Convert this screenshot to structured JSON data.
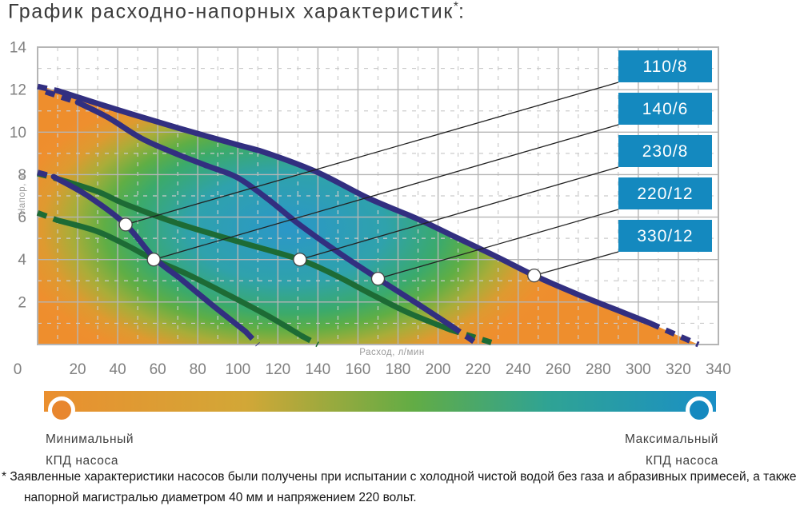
{
  "title": {
    "main": "График расходно-напорных характеристик",
    "asterisk": "*",
    "colon": ":"
  },
  "chart_data": {
    "type": "line",
    "xlabel": "Расход, л/мин",
    "ylabel": "Напор, м",
    "xlim": [
      0,
      340
    ],
    "ylim": [
      0,
      14
    ],
    "x_ticks": [
      0,
      20,
      40,
      60,
      80,
      100,
      120,
      140,
      160,
      180,
      200,
      220,
      240,
      260,
      280,
      300,
      320,
      340
    ],
    "y_ticks": [
      2,
      4,
      6,
      8,
      10,
      12,
      14
    ],
    "grid": {
      "major": "solid",
      "minor": "dashed"
    },
    "series": [
      {
        "label": "110/8",
        "color": "#322F80",
        "head_dash": [
          [
            0,
            8.1
          ],
          [
            8,
            7.9
          ]
        ],
        "points": [
          [
            8,
            7.9
          ],
          [
            25,
            7.0
          ],
          [
            44,
            5.65
          ],
          [
            58,
            4.1
          ],
          [
            72,
            3.05
          ],
          [
            86,
            1.95
          ],
          [
            104,
            0.6
          ]
        ],
        "tail_dash": [
          [
            104,
            0.6
          ],
          [
            110,
            0
          ]
        ],
        "marker": [
          44,
          5.65
        ]
      },
      {
        "label": "140/6",
        "color": "#1D6B35",
        "head_dash": [
          [
            0,
            6.2
          ],
          [
            10,
            5.85
          ]
        ],
        "points": [
          [
            10,
            5.85
          ],
          [
            29,
            5.35
          ],
          [
            44,
            4.7
          ],
          [
            58,
            4.0
          ],
          [
            75,
            3.3
          ],
          [
            96,
            2.3
          ],
          [
            115,
            1.35
          ],
          [
            132,
            0.4
          ]
        ],
        "tail_dash": [
          [
            132,
            0.4
          ],
          [
            140,
            0
          ]
        ],
        "marker": [
          58,
          4.0
        ]
      },
      {
        "label": "230/8",
        "color": "#1D6B35",
        "head_dash": [
          [
            0,
            8.05
          ],
          [
            10,
            7.8
          ]
        ],
        "points": [
          [
            10,
            7.8
          ],
          [
            30,
            7.2
          ],
          [
            44,
            6.6
          ],
          [
            70,
            5.7
          ],
          [
            100,
            4.85
          ],
          [
            131,
            4.0
          ],
          [
            150,
            3.2
          ],
          [
            166,
            2.4
          ],
          [
            185,
            1.5
          ],
          [
            206,
            0.7
          ]
        ],
        "tail_dash": [
          [
            206,
            0.7
          ],
          [
            218,
            0.35
          ],
          [
            230,
            0
          ]
        ],
        "marker": [
          131,
          4.0
        ]
      },
      {
        "label": "220/12",
        "color": "#322F80",
        "head_dash": [
          [
            4,
            11.9
          ],
          [
            20,
            11.4
          ]
        ],
        "points": [
          [
            20,
            11.4
          ],
          [
            35,
            10.7
          ],
          [
            52,
            9.7
          ],
          [
            70,
            8.95
          ],
          [
            85,
            8.4
          ],
          [
            100,
            7.85
          ],
          [
            115,
            6.85
          ],
          [
            130,
            5.7
          ],
          [
            150,
            4.35
          ],
          [
            170,
            3.1
          ],
          [
            190,
            1.9
          ],
          [
            207,
            0.85
          ]
        ],
        "tail_dash": [
          [
            207,
            0.85
          ],
          [
            220,
            0
          ]
        ],
        "marker": [
          170,
          3.1
        ]
      },
      {
        "label": "330/12",
        "color": "#322F80",
        "head_dash": [
          [
            0,
            12.15
          ],
          [
            10,
            11.95
          ]
        ],
        "points": [
          [
            10,
            11.95
          ],
          [
            40,
            11.05
          ],
          [
            70,
            10.2
          ],
          [
            100,
            9.4
          ],
          [
            115,
            9.0
          ],
          [
            140,
            8.1
          ],
          [
            165,
            6.9
          ],
          [
            190,
            5.9
          ],
          [
            210,
            5.0
          ],
          [
            230,
            4.1
          ],
          [
            248,
            3.25
          ],
          [
            270,
            2.35
          ],
          [
            290,
            1.6
          ],
          [
            306,
            1.0
          ]
        ],
        "tail_dash": [
          [
            306,
            1.0
          ],
          [
            318,
            0.5
          ],
          [
            330,
            0
          ]
        ],
        "marker": [
          248,
          3.25
        ]
      }
    ],
    "callout_boxes": {
      "fill": "#1489BF",
      "text_color": "#FFFFFF"
    },
    "efficiency_gradient_stops": [
      [
        0,
        "#2B97C8"
      ],
      [
        0.33,
        "#2FA2AC"
      ],
      [
        0.52,
        "#3BAA6B"
      ],
      [
        0.62,
        "#5FAE45"
      ],
      [
        0.73,
        "#A9AD39"
      ],
      [
        0.83,
        "#DE9A30"
      ],
      [
        0.93,
        "#EE8F2E"
      ],
      [
        1,
        "#EE8E2D"
      ]
    ]
  },
  "colorbar": {
    "gradient": [
      "#EA8F2F 0%",
      "#D2A737 30%",
      "#62AC45 55%",
      "#2FA394 75%",
      "#1A8FC6 100%"
    ],
    "min_color": "#E8862E",
    "max_color": "#1489BF",
    "min_label_line1": "Минимальный",
    "min_label_line2": "КПД насоса",
    "max_label_line1": "Максимальный",
    "max_label_line2": "КПД насоса"
  },
  "footnote": {
    "marker": "*",
    "text": "Заявленные характеристики насосов были получены при испытании с холодной чистой водой без газа и абразивных примесей, а также напорной магистралью диаметром 40 мм и напряжением 220 вольт."
  }
}
